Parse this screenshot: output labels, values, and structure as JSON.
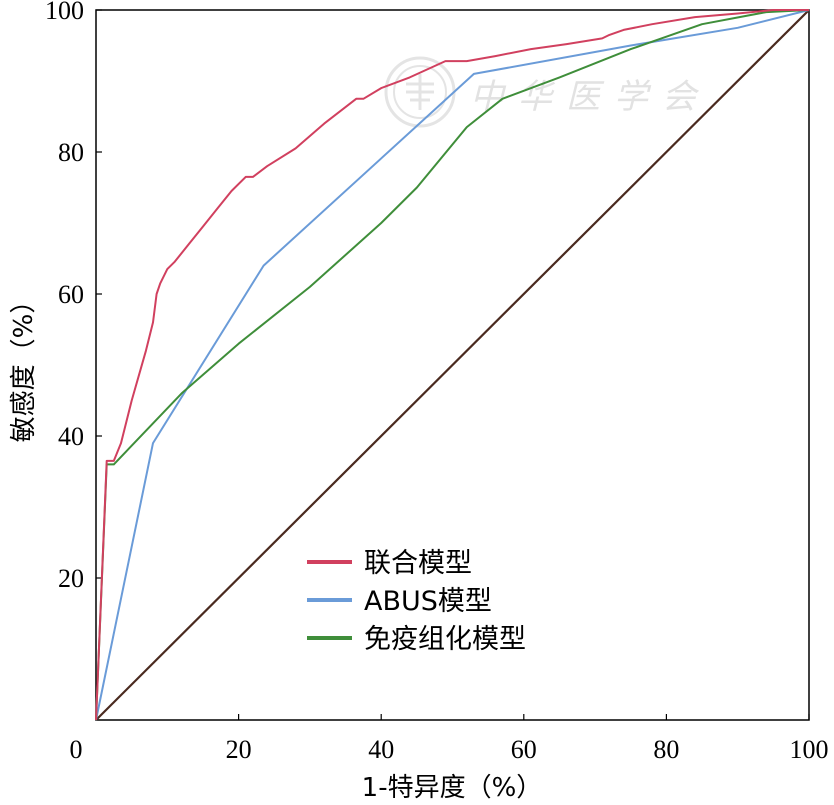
{
  "chart_data": {
    "type": "line",
    "xlabel": "1-特异度（%）",
    "ylabel": "敏感度（%）",
    "xlim": [
      0,
      100
    ],
    "ylim": [
      0,
      100
    ],
    "xticks": [
      0,
      20,
      40,
      60,
      80,
      100
    ],
    "yticks": [
      20,
      40,
      60,
      80,
      100
    ],
    "grid": false,
    "legend_position": "lower-center",
    "watermark": "中华医学会",
    "series": [
      {
        "name": "联合模型",
        "color": "#d1405f",
        "x": [
          0,
          1.5,
          2.5,
          3.5,
          5,
          7,
          8,
          8.5,
          9,
          10,
          11,
          13,
          15,
          17,
          19,
          21,
          22,
          24,
          28,
          32,
          36.5,
          37.5,
          40,
          44,
          49,
          52,
          56,
          61,
          66,
          71,
          72,
          74,
          78,
          84,
          90,
          95,
          100
        ],
        "y": [
          0,
          36.5,
          36.5,
          39,
          45,
          52,
          56,
          60,
          61.5,
          63.5,
          64.5,
          67,
          69.5,
          72,
          74.5,
          76.5,
          76.5,
          78,
          80.5,
          84,
          87.5,
          87.5,
          89,
          90.5,
          92.8,
          92.8,
          93.5,
          94.5,
          95.2,
          96,
          96.5,
          97.2,
          98,
          99,
          99.5,
          100,
          100
        ]
      },
      {
        "name": "ABUS模型",
        "color": "#6a9bd8",
        "x": [
          0,
          8,
          23.5,
          53,
          75,
          90,
          100
        ],
        "y": [
          0,
          39,
          64,
          91,
          95,
          97.5,
          100
        ]
      },
      {
        "name": "免疫组化模型",
        "color": "#3f8e3a",
        "x": [
          0,
          1.5,
          2.5,
          12,
          20,
          30,
          40,
          45,
          52,
          57,
          65,
          75,
          85,
          94,
          100
        ],
        "y": [
          0,
          36,
          36,
          46,
          53,
          61,
          70,
          75,
          83.5,
          87.5,
          90.5,
          94.5,
          98,
          99.7,
          100
        ]
      },
      {
        "name": "",
        "color": "#4a2a1f",
        "x": [
          0,
          100
        ],
        "y": [
          0,
          100
        ]
      }
    ]
  }
}
